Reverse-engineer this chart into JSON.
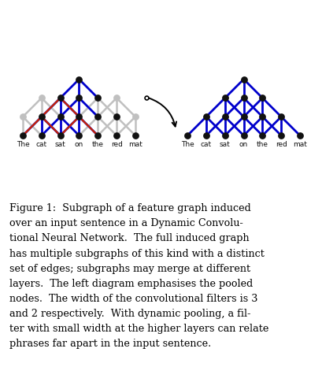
{
  "words": [
    "The",
    "cat",
    "sat",
    "on",
    "the",
    "red",
    "mat"
  ],
  "blue": "#0000cc",
  "red": "#cc2200",
  "gray": "#c0c0c0",
  "black": "#111111",
  "bg": "#ffffff",
  "caption_lines": [
    "Figure 1:  Subgraph of a feature graph induced",
    "over an input sentence in a Dynamic Convolu-",
    "tional Neural Network.  The full induced graph",
    "has multiple subgraphs of this kind with a distinct",
    "set of edges; subgraphs may merge at different",
    "layers.  The left diagram emphasises the pooled",
    "nodes.  The width of the convolutional filters is 3",
    "and 2 respectively.  With dynamic pooling, a fil-",
    "ter with small width at the higher layers can relate",
    "phrases far apart in the input sentence."
  ]
}
